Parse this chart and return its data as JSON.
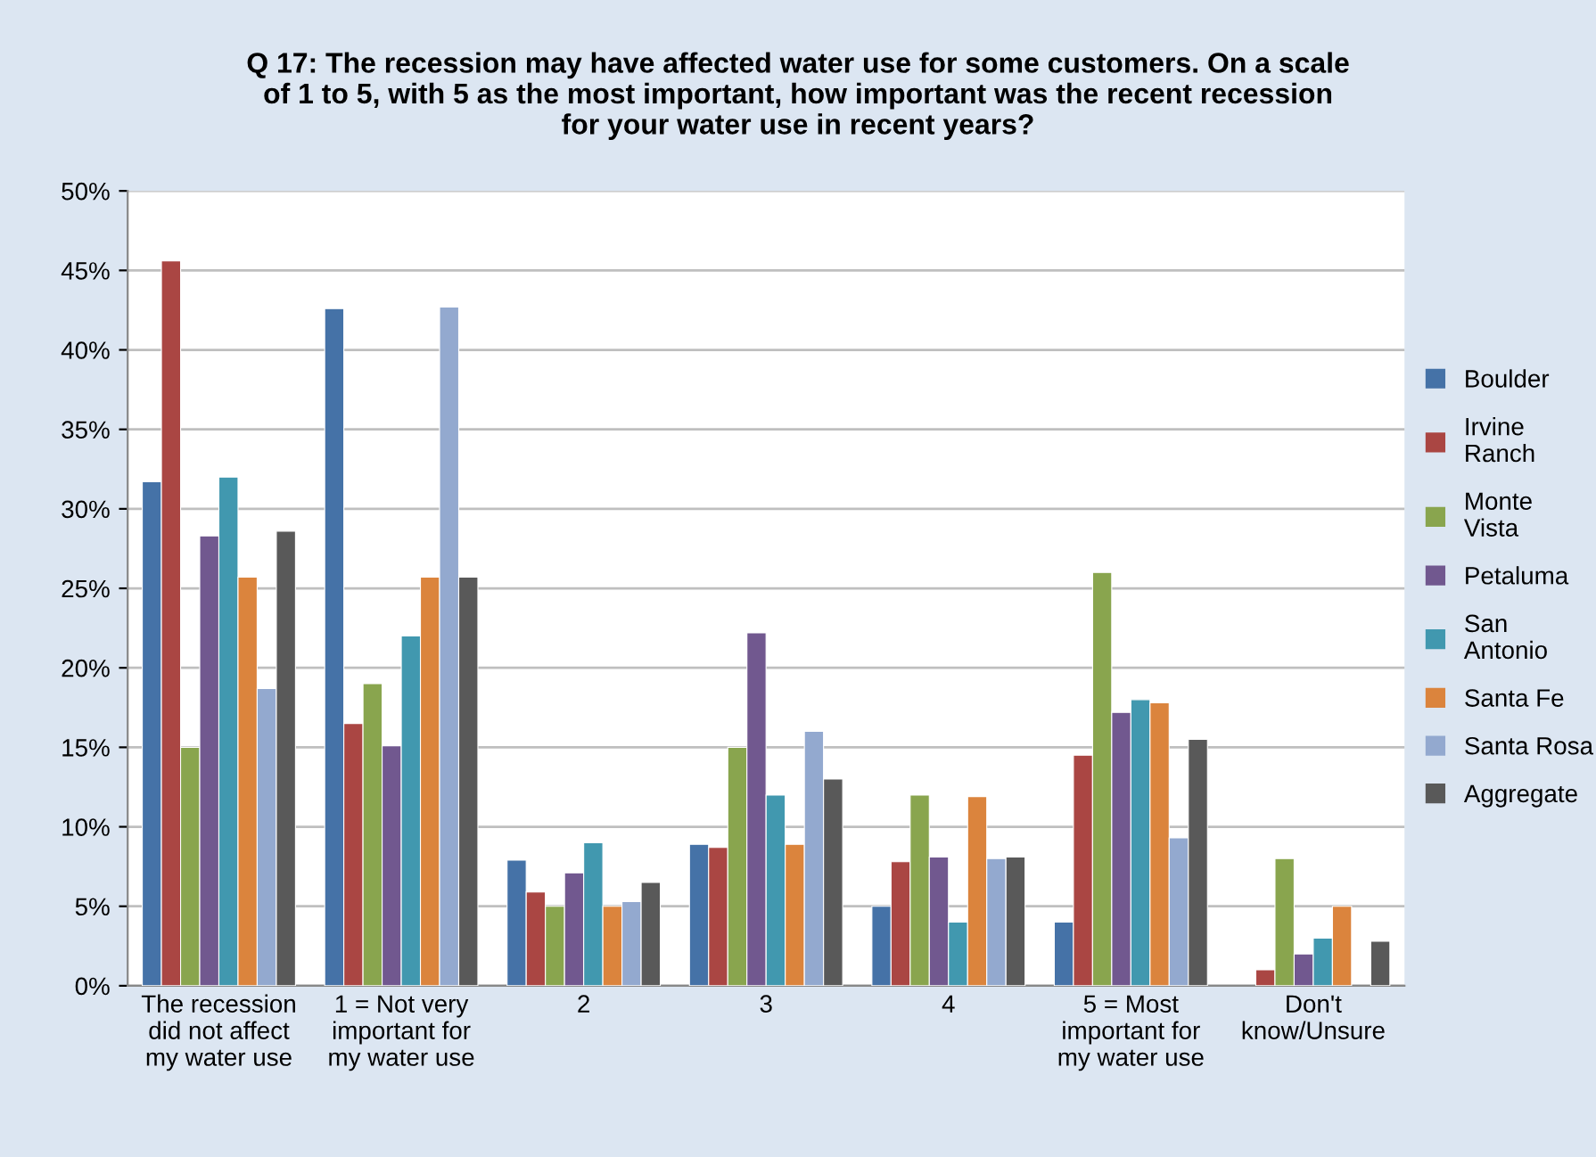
{
  "chart_data": {
    "type": "bar",
    "title": "Q 17: The recession may have affected water use for some customers. On a scale of 1 to 5, with 5 as the most important, how important was the recent recession for your water use in recent years?",
    "categories": [
      "The recession did not affect my water use",
      "1 = Not very important for my water use",
      "2",
      "3",
      "4",
      "5 = Most important for my water use",
      "Don't know/Unsure"
    ],
    "series": [
      {
        "name": "Boulder",
        "color": "#4572a7",
        "values": [
          31.7,
          42.6,
          7.9,
          8.9,
          5,
          4,
          null
        ]
      },
      {
        "name": "Irvine Ranch",
        "color": "#aa4643",
        "values": [
          45.6,
          16.5,
          5.9,
          8.7,
          7.8,
          14.5,
          1
        ]
      },
      {
        "name": "Monte Vista",
        "color": "#89a54e",
        "values": [
          15,
          19,
          5,
          15,
          12,
          26,
          8
        ]
      },
      {
        "name": "Petaluma",
        "color": "#71588f",
        "values": [
          28.3,
          15.1,
          7.1,
          22.2,
          8.1,
          17.2,
          2
        ]
      },
      {
        "name": "San Antonio",
        "color": "#4198af",
        "values": [
          32,
          22,
          9,
          12,
          4,
          18,
          3
        ]
      },
      {
        "name": "Santa Fe",
        "color": "#db843d",
        "values": [
          25.7,
          25.7,
          5,
          8.9,
          11.9,
          17.8,
          5
        ]
      },
      {
        "name": "Santa Rosa",
        "color": "#93a9cf",
        "values": [
          18.7,
          42.7,
          5.3,
          16,
          8,
          9.3,
          null
        ]
      },
      {
        "name": "Aggregate",
        "color": "#595959",
        "values": [
          28.6,
          25.7,
          6.5,
          13,
          8.1,
          15.5,
          2.8
        ]
      }
    ],
    "ylim": [
      0,
      50
    ],
    "yticks": [
      {
        "value": 0,
        "label": "0%"
      },
      {
        "value": 5,
        "label": "5%"
      },
      {
        "value": 10,
        "label": "10%"
      },
      {
        "value": 15,
        "label": "15%"
      },
      {
        "value": 20,
        "label": "20%"
      },
      {
        "value": 25,
        "label": "25%"
      },
      {
        "value": 30,
        "label": "30%"
      },
      {
        "value": 35,
        "label": "35%"
      },
      {
        "value": 40,
        "label": "40%"
      },
      {
        "value": 45,
        "label": "45%"
      },
      {
        "value": 50,
        "label": "50%"
      }
    ],
    "grid": "y",
    "legend": "right"
  }
}
